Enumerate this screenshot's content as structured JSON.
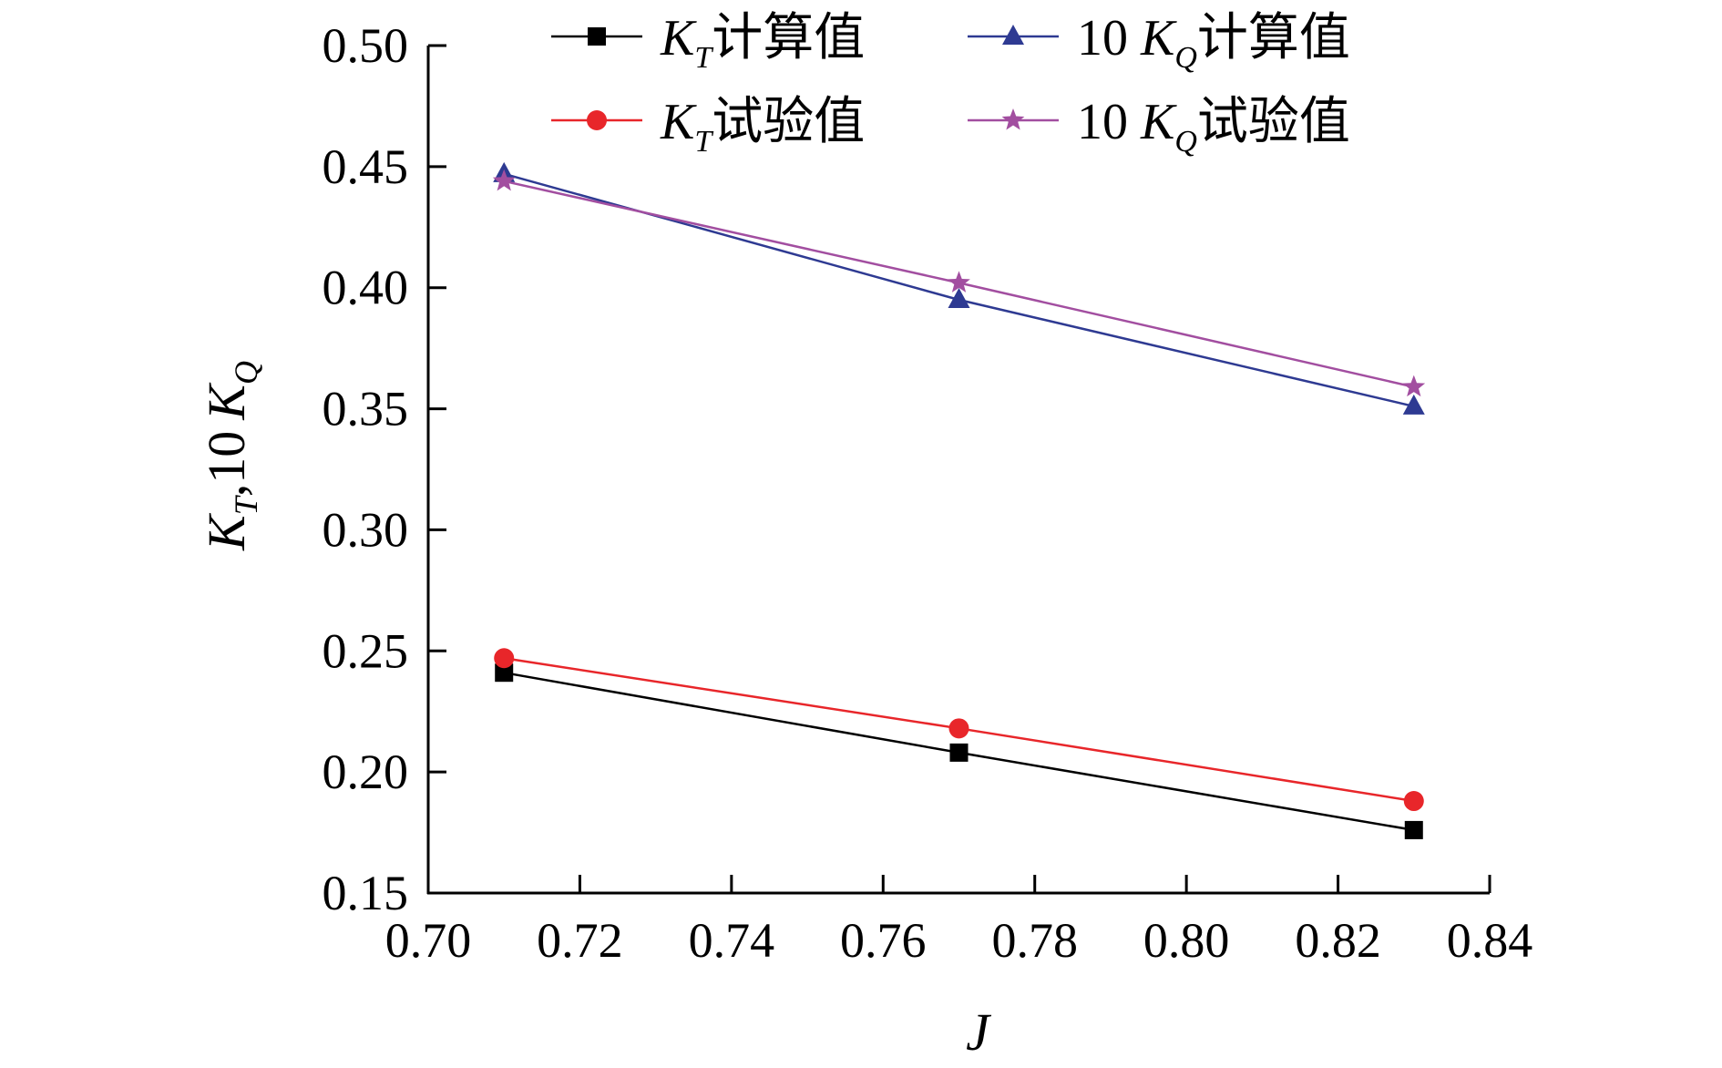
{
  "chart_data": {
    "type": "line",
    "title": "",
    "xlabel": "J",
    "ylabel": {
      "text_k": "K",
      "sub_t": "T",
      "separator": ",",
      "ten": "10",
      "text_k2": "K",
      "sub_q": "Q"
    },
    "xlim": [
      0.7,
      0.84
    ],
    "ylim": [
      0.15,
      0.5
    ],
    "xticks": [
      "0.70",
      "0.72",
      "0.74",
      "0.76",
      "0.78",
      "0.80",
      "0.82",
      "0.84"
    ],
    "yticks": [
      "0.15",
      "0.20",
      "0.25",
      "0.30",
      "0.35",
      "0.40",
      "0.45",
      "0.50"
    ],
    "x": [
      0.71,
      0.77,
      0.83
    ],
    "series": [
      {
        "key": "kt-calc",
        "legend": {
          "prefix": "",
          "k": "K",
          "sub": "T",
          "suffix": "计算值"
        },
        "color": "#000000",
        "marker": "square",
        "values": [
          0.241,
          0.208,
          0.176
        ]
      },
      {
        "key": "kt-test",
        "legend": {
          "prefix": "",
          "k": "K",
          "sub": "T",
          "suffix": "试验值"
        },
        "color": "#e8262a",
        "marker": "circle",
        "values": [
          0.247,
          0.218,
          0.188
        ]
      },
      {
        "key": "kq-calc",
        "legend": {
          "prefix": "10 ",
          "k": "K",
          "sub": "Q",
          "suffix": "计算值"
        },
        "color": "#2e3a92",
        "marker": "triangle",
        "values": [
          0.447,
          0.395,
          0.351
        ]
      },
      {
        "key": "kq-test",
        "legend": {
          "prefix": "10 ",
          "k": "K",
          "sub": "Q",
          "suffix": "试验值"
        },
        "color": "#a24ea0",
        "marker": "star",
        "values": [
          0.444,
          0.402,
          0.359
        ]
      }
    ],
    "legend_placement": "top",
    "grid": false
  }
}
